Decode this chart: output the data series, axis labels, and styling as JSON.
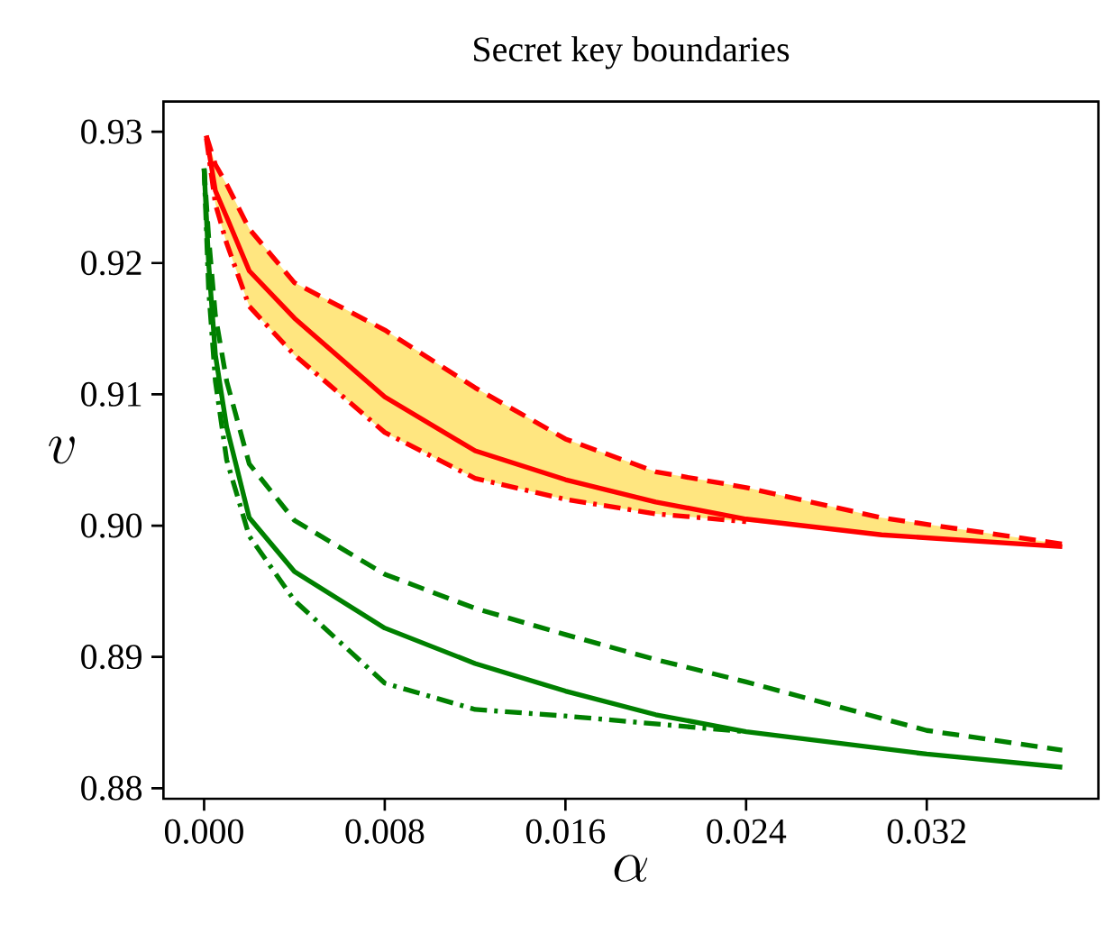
{
  "chart_data": {
    "type": "line",
    "title": "Secret key boundaries",
    "xlabel": "\\alpha",
    "ylabel": "v",
    "xlim": [
      -0.0018,
      0.0396
    ],
    "ylim": [
      0.8792,
      0.9323
    ],
    "xticks": [
      {
        "value": 0.0,
        "label": "0.000"
      },
      {
        "value": 0.008,
        "label": "0.008"
      },
      {
        "value": 0.016,
        "label": "0.016"
      },
      {
        "value": 0.024,
        "label": "0.024"
      },
      {
        "value": 0.032,
        "label": "0.032"
      }
    ],
    "yticks": [
      {
        "value": 0.88,
        "label": "0.88"
      },
      {
        "value": 0.89,
        "label": "0.89"
      },
      {
        "value": 0.9,
        "label": "0.90"
      },
      {
        "value": 0.91,
        "label": "0.91"
      },
      {
        "value": 0.92,
        "label": "0.92"
      },
      {
        "value": 0.93,
        "label": "0.93"
      }
    ],
    "grid": false,
    "marker": "none",
    "series": [
      {
        "color": "#ff0000",
        "line_style": "solid",
        "x": [
          0.0001,
          0.0005,
          0.001,
          0.002,
          0.004,
          0.008,
          0.012,
          0.016,
          0.02,
          0.024,
          0.03,
          0.038
        ],
        "values": [
          0.9297,
          0.9255,
          0.9235,
          0.9194,
          0.9158,
          0.9098,
          0.9057,
          0.9035,
          0.9018,
          0.9005,
          0.8993,
          0.8984
        ],
        "lower": [
          0.9295,
          0.9245,
          0.9215,
          0.9167,
          0.913,
          0.9071,
          0.9036,
          0.902,
          0.9009,
          0.9003,
          0.8993,
          0.8984
        ],
        "upper": [
          0.9297,
          0.9275,
          0.926,
          0.9226,
          0.9185,
          0.9149,
          0.9105,
          0.9066,
          0.9041,
          0.9029,
          0.9006,
          0.8986
        ]
      },
      {
        "color": "#ff0000",
        "line_style": "dashed",
        "x": [
          0.0001,
          0.0005,
          0.001,
          0.002,
          0.004,
          0.008,
          0.012,
          0.016,
          0.02,
          0.024,
          0.03,
          0.038
        ],
        "values": [
          0.9297,
          0.9275,
          0.926,
          0.9226,
          0.9185,
          0.9149,
          0.9105,
          0.9066,
          0.9041,
          0.9029,
          0.9006,
          0.8986
        ]
      },
      {
        "color": "#ff0000",
        "line_style": "dashdot",
        "x": [
          0.0001,
          0.0005,
          0.001,
          0.002,
          0.004,
          0.008,
          0.012,
          0.016,
          0.02,
          0.024
        ],
        "values": [
          0.9295,
          0.9245,
          0.9215,
          0.9167,
          0.913,
          0.9071,
          0.9036,
          0.902,
          0.9009,
          0.9003
        ]
      },
      {
        "color": "#008000",
        "line_style": "solid",
        "x": [
          0.0,
          0.0002,
          0.0005,
          0.001,
          0.002,
          0.004,
          0.008,
          0.012,
          0.016,
          0.02,
          0.024,
          0.032,
          0.038
        ],
        "values": [
          0.9272,
          0.92,
          0.913,
          0.9075,
          0.9006,
          0.8965,
          0.8922,
          0.8895,
          0.8874,
          0.8856,
          0.8843,
          0.8826,
          0.8816
        ]
      },
      {
        "color": "#008000",
        "line_style": "dashed",
        "x": [
          0.0,
          0.0002,
          0.0005,
          0.001,
          0.002,
          0.004,
          0.008,
          0.012,
          0.016,
          0.02,
          0.024,
          0.032,
          0.038
        ],
        "values": [
          0.9272,
          0.922,
          0.916,
          0.911,
          0.9047,
          0.9004,
          0.8963,
          0.8937,
          0.8917,
          0.8898,
          0.8881,
          0.8844,
          0.8829
        ]
      },
      {
        "color": "#008000",
        "line_style": "dashdot",
        "x": [
          0.0,
          0.0002,
          0.0005,
          0.001,
          0.002,
          0.004,
          0.008,
          0.012,
          0.016,
          0.02,
          0.024
        ],
        "values": [
          0.9272,
          0.918,
          0.911,
          0.905,
          0.8992,
          0.8943,
          0.888,
          0.886,
          0.8855,
          0.8849,
          0.8843
        ]
      }
    ]
  }
}
